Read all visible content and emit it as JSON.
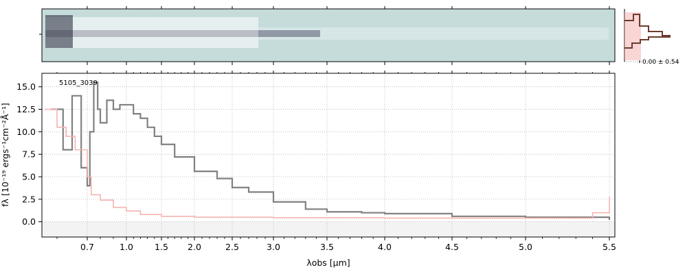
{
  "chart_data": {
    "type": "line",
    "object_id": "5105_3039",
    "xlabel": "λobs [µm]",
    "ylabel": "fλ [10⁻¹⁹ ergs⁻¹cm⁻²Å⁻¹]",
    "ylim": [
      -1.7,
      16.5
    ],
    "xlim": [
      0.55,
      5.52
    ],
    "x_scale": "custom (spectral resolution)",
    "x_ticks": [
      "0.7",
      "1.0",
      "1.5",
      "2.0",
      "2.5",
      "3.0",
      "3.5",
      "4.0",
      "4.5",
      "5.0",
      "5.5"
    ],
    "y_ticks": [
      "0.0",
      "2.5",
      "5.0",
      "7.5",
      "10.0",
      "12.5",
      "15.0"
    ],
    "grid": true,
    "side_panel_label": "0.00 ± 0.54",
    "series": [
      {
        "role": "flux",
        "color": "#808080",
        "x": [
          0.58,
          0.62,
          0.65,
          0.68,
          0.7,
          0.72,
          0.75,
          0.78,
          0.8,
          0.85,
          0.9,
          0.95,
          1.0,
          1.1,
          1.2,
          1.3,
          1.4,
          1.5,
          1.7,
          2.0,
          2.3,
          2.5,
          2.7,
          3.0,
          3.3,
          3.5,
          3.8,
          4.0,
          4.5,
          5.0,
          5.5
        ],
        "y": [
          12.5,
          8.0,
          14.0,
          6.0,
          4.0,
          10.0,
          15.5,
          12.5,
          11.0,
          13.5,
          12.5,
          13.0,
          13.0,
          12.0,
          11.5,
          10.5,
          9.5,
          8.6,
          7.2,
          5.6,
          4.8,
          3.8,
          3.3,
          2.2,
          1.4,
          1.1,
          1.0,
          0.9,
          0.6,
          0.5,
          0.2
        ]
      },
      {
        "role": "error",
        "color": "#f4b4b0",
        "x": [
          0.56,
          0.6,
          0.63,
          0.66,
          0.7,
          0.73,
          0.8,
          0.9,
          1.0,
          1.2,
          1.5,
          2.0,
          3.0,
          4.0,
          5.0,
          5.4,
          5.5
        ],
        "y": [
          12.5,
          10.5,
          9.5,
          8.0,
          5.0,
          3.0,
          2.4,
          1.6,
          1.2,
          0.8,
          0.6,
          0.5,
          0.45,
          0.4,
          0.4,
          1.0,
          2.8
        ]
      }
    ]
  }
}
